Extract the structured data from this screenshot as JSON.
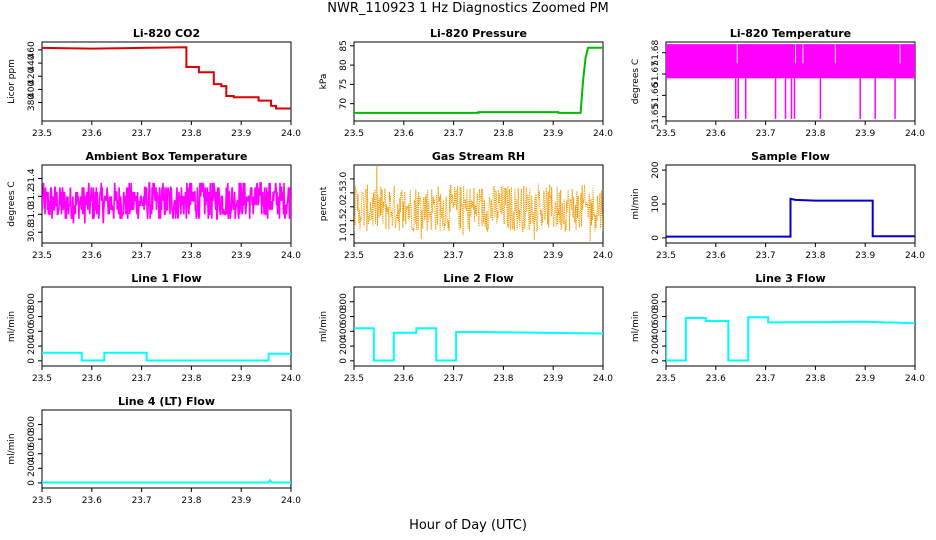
{
  "title": "NWR_110923  1 Hz Diagnostics Zoomed PM",
  "xlabel": "Hour of Day (UTC)",
  "chart_data": [
    {
      "type": "line",
      "title": "Li-820 CO2",
      "ylabel": "Licor ppm",
      "xlim": [
        23.5,
        24.0
      ],
      "xticks": [
        "23.5",
        "23.6",
        "23.7",
        "23.8",
        "23.9",
        "24.0"
      ],
      "ylim": [
        352,
        472
      ],
      "yticks": [
        "380",
        "400",
        "420",
        "440",
        "460"
      ],
      "grid": false,
      "series": [
        {
          "color": "#dd0000",
          "x": [
            23.5,
            23.6,
            23.7,
            23.79,
            23.79,
            23.815,
            23.815,
            23.845,
            23.845,
            23.86,
            23.86,
            23.87,
            23.87,
            23.885,
            23.885,
            23.935,
            23.935,
            23.96,
            23.96,
            23.97,
            23.97,
            24.0
          ],
          "y": [
            463,
            462,
            463,
            464,
            434,
            434,
            426,
            426,
            408,
            408,
            405,
            405,
            390,
            390,
            388,
            388,
            383,
            383,
            375,
            375,
            371,
            371
          ]
        }
      ]
    },
    {
      "type": "line",
      "title": "Li-820 Pressure",
      "ylabel": "kPa",
      "xlim": [
        23.5,
        24.0
      ],
      "xticks": [
        "23.5",
        "23.6",
        "23.7",
        "23.8",
        "23.9",
        "24.0"
      ],
      "ylim": [
        65.5,
        86
      ],
      "yticks": [
        "70",
        "75",
        "80",
        "85"
      ],
      "grid": false,
      "series": [
        {
          "color": "#00bb00",
          "x": [
            23.5,
            23.75,
            23.75,
            23.91,
            23.91,
            23.955,
            23.96,
            23.965,
            23.97,
            24.0
          ],
          "y": [
            67.6,
            67.6,
            67.8,
            67.8,
            67.6,
            67.6,
            76,
            82,
            84.5,
            84.5
          ]
        }
      ]
    },
    {
      "type": "line",
      "title": "Li-820 Temperature",
      "ylabel": "degrees C",
      "xlim": [
        23.5,
        24.0
      ],
      "xticks": [
        "23.5",
        "23.6",
        "23.7",
        "23.8",
        "23.9",
        "24.0"
      ],
      "ylim": [
        51.648,
        51.685
      ],
      "yticks": [
        "51.65",
        "51.66",
        "51.67",
        "51.68"
      ],
      "grid": false,
      "series": [
        {
          "color": "#ff00ff",
          "x": [
            23.5,
            24.0
          ],
          "y": [
            51.68,
            51.68
          ]
        }
      ]
    },
    {
      "type": "line",
      "title": "Ambient Box Temperature",
      "ylabel": "degrees C",
      "xlim": [
        23.5,
        24.0
      ],
      "xticks": [
        "23.5",
        "23.6",
        "23.7",
        "23.8",
        "23.9",
        "24.0"
      ],
      "ylim": [
        30.68,
        31.55
      ],
      "yticks": [
        "30.8",
        "31.0",
        "31.2",
        "31.4"
      ],
      "grid": false,
      "series": [
        {
          "color": "#ff00ff",
          "x": [
            23.5,
            24.0
          ],
          "y": [
            31.1,
            31.2
          ]
        }
      ]
    },
    {
      "type": "line",
      "title": "Gas Stream RH",
      "ylabel": "percent",
      "xlim": [
        23.5,
        24.0
      ],
      "xticks": [
        "23.5",
        "23.6",
        "23.7",
        "23.8",
        "23.9",
        "24.0"
      ],
      "ylim": [
        0.7,
        3.5
      ],
      "yticks": [
        "1.0",
        "1.5",
        "2.0",
        "2.5",
        "3.0"
      ],
      "grid": false,
      "series": [
        {
          "color": "#ee9900",
          "x": [
            23.5,
            24.0
          ],
          "y": [
            1.9,
            1.9
          ]
        }
      ]
    },
    {
      "type": "line",
      "title": "Sample Flow",
      "ylabel": "ml/min",
      "xlim": [
        23.5,
        24.0
      ],
      "xticks": [
        "23.5",
        "23.6",
        "23.7",
        "23.8",
        "23.9",
        "24.0"
      ],
      "ylim": [
        -15,
        215
      ],
      "yticks": [
        "0",
        "100",
        "200"
      ],
      "grid": false,
      "series": [
        {
          "color": "#0000cc",
          "x": [
            23.5,
            23.75,
            23.75,
            23.76,
            23.8,
            23.915,
            23.915,
            24.0
          ],
          "y": [
            4,
            4,
            115,
            112,
            110,
            110,
            5,
            5
          ]
        }
      ]
    },
    {
      "type": "line",
      "title": "Line 1 Flow",
      "ylabel": "ml/min",
      "xlim": [
        23.5,
        24.0
      ],
      "xticks": [
        "23.5",
        "23.6",
        "23.7",
        "23.8",
        "23.9",
        "24.0"
      ],
      "ylim": [
        -70,
        1000
      ],
      "yticks": [
        "0",
        "200",
        "400",
        "600",
        "800"
      ],
      "grid": false,
      "series": [
        {
          "color": "#00ffff",
          "x": [
            23.5,
            23.58,
            23.58,
            23.625,
            23.625,
            23.71,
            23.71,
            23.955,
            23.955,
            24.0
          ],
          "y": [
            110,
            110,
            5,
            5,
            110,
            110,
            5,
            5,
            95,
            95
          ]
        }
      ]
    },
    {
      "type": "line",
      "title": "Line 2 Flow",
      "ylabel": "ml/min",
      "xlim": [
        23.5,
        24.0
      ],
      "xticks": [
        "23.5",
        "23.6",
        "23.7",
        "23.8",
        "23.9",
        "24.0"
      ],
      "ylim": [
        -70,
        1000
      ],
      "yticks": [
        "0",
        "200",
        "400",
        "600",
        "800"
      ],
      "grid": false,
      "series": [
        {
          "color": "#00ffff",
          "x": [
            23.5,
            23.54,
            23.54,
            23.58,
            23.58,
            23.625,
            23.625,
            23.665,
            23.665,
            23.705,
            23.705,
            23.75,
            24.0
          ],
          "y": [
            440,
            440,
            5,
            5,
            380,
            380,
            440,
            440,
            5,
            5,
            390,
            390,
            370
          ]
        }
      ]
    },
    {
      "type": "line",
      "title": "Line 3 Flow",
      "ylabel": "ml/min",
      "xlim": [
        23.5,
        24.0
      ],
      "xticks": [
        "23.5",
        "23.6",
        "23.7",
        "23.8",
        "23.9",
        "24.0"
      ],
      "ylim": [
        -70,
        1000
      ],
      "yticks": [
        "0",
        "200",
        "400",
        "600",
        "800"
      ],
      "grid": false,
      "series": [
        {
          "color": "#00ffff",
          "x": [
            23.5,
            23.5,
            23.505,
            23.505,
            23.54,
            23.54,
            23.58,
            23.58,
            23.625,
            23.625,
            23.665,
            23.665,
            23.705,
            23.705,
            23.8,
            23.9,
            24.0
          ],
          "y": [
            560,
            5,
            5,
            5,
            5,
            580,
            580,
            540,
            540,
            5,
            5,
            590,
            590,
            520,
            525,
            530,
            510
          ]
        }
      ]
    },
    {
      "type": "line",
      "title": "Line 4 (LT) Flow",
      "ylabel": "ml/min",
      "xlim": [
        23.5,
        24.0
      ],
      "xticks": [
        "23.5",
        "23.6",
        "23.7",
        "23.8",
        "23.9",
        "24.0"
      ],
      "ylim": [
        -70,
        1000
      ],
      "yticks": [
        "0",
        "200",
        "400",
        "600",
        "800"
      ],
      "grid": false,
      "series": [
        {
          "color": "#00ffff",
          "x": [
            23.5,
            23.955,
            23.958,
            23.962,
            24.0
          ],
          "y": [
            5,
            5,
            35,
            5,
            5
          ]
        }
      ]
    }
  ]
}
